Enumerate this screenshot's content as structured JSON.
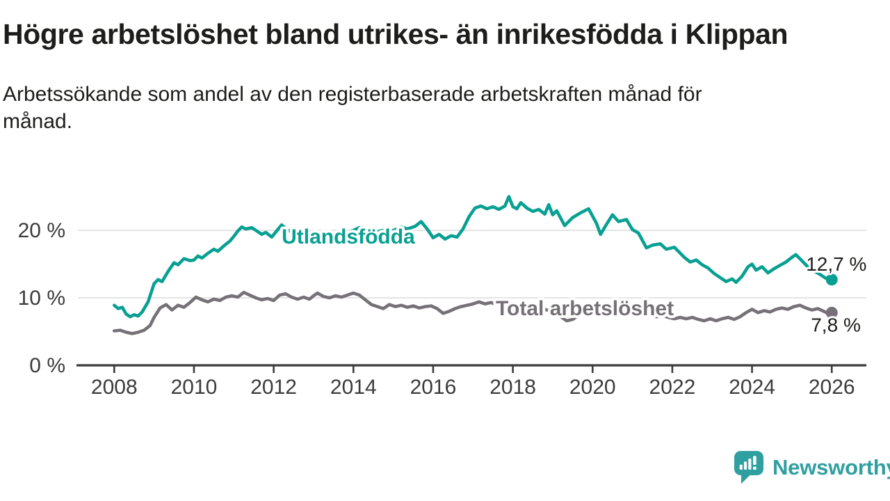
{
  "header": {
    "title": "Högre arbetslöshet bland utrikes- än inrikesfödda i Klippan",
    "subtitle": "Arbetssökande som andel av den registerbaserade arbetskraften månad för\nmånad."
  },
  "branding": {
    "name": "Newsworthy",
    "color": "#2f9fa0",
    "icon": "newsworthy-speech-bubble-chart-icon"
  },
  "chart_data": {
    "type": "line",
    "title": "",
    "xlabel": "",
    "ylabel": "",
    "unit": "%",
    "grid": true,
    "legend": "inline-labels",
    "axis_color": "#3b3b3b",
    "grid_color": "#dcdcdc",
    "value_label_color": "#1d1d1b",
    "x_axis": {
      "ticks": [
        2008,
        2010,
        2012,
        2014,
        2016,
        2018,
        2020,
        2022,
        2024,
        2026
      ],
      "range": [
        2007.1,
        2026.9
      ]
    },
    "y_axis": {
      "ticks": [
        0,
        10,
        20
      ],
      "labels": [
        "0 %",
        "10 %",
        "20 %"
      ],
      "range": [
        0,
        26
      ]
    },
    "series": [
      {
        "name": "Utlandsfödda",
        "color": "#08a092",
        "inline_label": {
          "text": "Utlandsfödda",
          "x": 2012.2,
          "y": 18.05
        },
        "end_label": "12,7 %",
        "end_value": 12.7,
        "points": [
          [
            2008.0,
            8.9
          ],
          [
            2008.1,
            8.4
          ],
          [
            2008.2,
            8.6
          ],
          [
            2008.3,
            7.6
          ],
          [
            2008.4,
            7.2
          ],
          [
            2008.5,
            7.5
          ],
          [
            2008.6,
            7.3
          ],
          [
            2008.7,
            7.9
          ],
          [
            2008.85,
            9.4
          ],
          [
            2009.0,
            12.1
          ],
          [
            2009.1,
            12.7
          ],
          [
            2009.2,
            12.4
          ],
          [
            2009.35,
            13.9
          ],
          [
            2009.5,
            15.2
          ],
          [
            2009.6,
            14.9
          ],
          [
            2009.75,
            15.8
          ],
          [
            2009.9,
            15.5
          ],
          [
            2010.0,
            15.6
          ],
          [
            2010.1,
            16.2
          ],
          [
            2010.2,
            15.9
          ],
          [
            2010.35,
            16.6
          ],
          [
            2010.5,
            17.2
          ],
          [
            2010.6,
            16.9
          ],
          [
            2010.75,
            17.7
          ],
          [
            2010.9,
            18.4
          ],
          [
            2011.0,
            19.1
          ],
          [
            2011.1,
            19.9
          ],
          [
            2011.2,
            20.5
          ],
          [
            2011.3,
            20.2
          ],
          [
            2011.45,
            20.4
          ],
          [
            2011.6,
            19.8
          ],
          [
            2011.7,
            19.4
          ],
          [
            2011.8,
            19.7
          ],
          [
            2011.95,
            19.0
          ],
          [
            2012.1,
            20.1
          ],
          [
            2012.2,
            20.8
          ],
          [
            2012.3,
            20.3
          ],
          [
            2012.4,
            19.9
          ],
          [
            2012.5,
            20.1
          ],
          [
            2012.6,
            19.6
          ],
          [
            2012.75,
            19.3
          ],
          [
            2012.9,
            19.6
          ],
          [
            2013.0,
            19.8
          ],
          [
            2013.15,
            19.5
          ],
          [
            2013.3,
            19.8
          ],
          [
            2013.45,
            19.4
          ],
          [
            2013.6,
            19.1
          ],
          [
            2013.75,
            19.5
          ],
          [
            2013.9,
            19.8
          ],
          [
            2014.0,
            20.0
          ],
          [
            2014.15,
            20.4
          ],
          [
            2014.3,
            20.1
          ],
          [
            2014.45,
            20.3
          ],
          [
            2014.6,
            19.8
          ],
          [
            2014.75,
            20.0
          ],
          [
            2014.9,
            19.7
          ],
          [
            2015.05,
            20.1
          ],
          [
            2015.2,
            20.5
          ],
          [
            2015.35,
            20.2
          ],
          [
            2015.55,
            20.6
          ],
          [
            2015.7,
            21.3
          ],
          [
            2015.85,
            20.2
          ],
          [
            2016.0,
            18.9
          ],
          [
            2016.15,
            19.4
          ],
          [
            2016.3,
            18.7
          ],
          [
            2016.45,
            19.2
          ],
          [
            2016.6,
            19.0
          ],
          [
            2016.75,
            20.2
          ],
          [
            2016.9,
            22.0
          ],
          [
            2017.05,
            23.3
          ],
          [
            2017.2,
            23.6
          ],
          [
            2017.35,
            23.2
          ],
          [
            2017.5,
            23.5
          ],
          [
            2017.65,
            23.1
          ],
          [
            2017.8,
            23.6
          ],
          [
            2017.9,
            25.0
          ],
          [
            2018.0,
            23.5
          ],
          [
            2018.1,
            23.2
          ],
          [
            2018.2,
            24.1
          ],
          [
            2018.35,
            23.3
          ],
          [
            2018.5,
            22.8
          ],
          [
            2018.65,
            23.1
          ],
          [
            2018.8,
            22.4
          ],
          [
            2018.9,
            23.8
          ],
          [
            2019.0,
            22.3
          ],
          [
            2019.1,
            22.9
          ],
          [
            2019.3,
            20.7
          ],
          [
            2019.5,
            21.9
          ],
          [
            2019.7,
            22.6
          ],
          [
            2019.9,
            23.2
          ],
          [
            2020.1,
            21.0
          ],
          [
            2020.2,
            19.4
          ],
          [
            2020.35,
            20.9
          ],
          [
            2020.5,
            22.3
          ],
          [
            2020.65,
            21.3
          ],
          [
            2020.85,
            21.6
          ],
          [
            2021.0,
            20.1
          ],
          [
            2021.15,
            19.6
          ],
          [
            2021.35,
            17.4
          ],
          [
            2021.5,
            17.8
          ],
          [
            2021.7,
            18.0
          ],
          [
            2021.85,
            17.2
          ],
          [
            2022.05,
            17.5
          ],
          [
            2022.3,
            16.0
          ],
          [
            2022.45,
            15.3
          ],
          [
            2022.6,
            15.6
          ],
          [
            2022.75,
            14.9
          ],
          [
            2022.9,
            14.4
          ],
          [
            2023.05,
            13.6
          ],
          [
            2023.2,
            13.0
          ],
          [
            2023.35,
            12.4
          ],
          [
            2023.5,
            12.8
          ],
          [
            2023.6,
            12.3
          ],
          [
            2023.75,
            13.2
          ],
          [
            2023.9,
            14.6
          ],
          [
            2024.0,
            15.0
          ],
          [
            2024.1,
            14.1
          ],
          [
            2024.25,
            14.6
          ],
          [
            2024.4,
            13.7
          ],
          [
            2024.55,
            14.3
          ],
          [
            2024.7,
            14.8
          ],
          [
            2024.85,
            15.3
          ],
          [
            2025.0,
            16.0
          ],
          [
            2025.1,
            16.4
          ],
          [
            2025.25,
            15.5
          ],
          [
            2025.4,
            14.6
          ],
          [
            2025.55,
            14.0
          ],
          [
            2025.7,
            13.5
          ],
          [
            2025.85,
            12.9
          ],
          [
            2026.0,
            12.7
          ]
        ]
      },
      {
        "name": "Total arbetslöshet",
        "color": "#757177",
        "inline_label": {
          "text": "Total arbetslöshet",
          "x": 2017.57,
          "y": 7.42
        },
        "end_label": "7,8 %",
        "end_value": 7.8,
        "points": [
          [
            2008.0,
            5.1
          ],
          [
            2008.15,
            5.2
          ],
          [
            2008.3,
            4.9
          ],
          [
            2008.45,
            4.7
          ],
          [
            2008.6,
            4.9
          ],
          [
            2008.75,
            5.2
          ],
          [
            2008.9,
            5.9
          ],
          [
            2009.0,
            7.1
          ],
          [
            2009.15,
            8.5
          ],
          [
            2009.3,
            9.0
          ],
          [
            2009.45,
            8.2
          ],
          [
            2009.6,
            8.9
          ],
          [
            2009.75,
            8.6
          ],
          [
            2009.9,
            9.3
          ],
          [
            2010.05,
            10.1
          ],
          [
            2010.2,
            9.7
          ],
          [
            2010.35,
            9.4
          ],
          [
            2010.5,
            9.8
          ],
          [
            2010.65,
            9.6
          ],
          [
            2010.8,
            10.1
          ],
          [
            2010.95,
            10.3
          ],
          [
            2011.1,
            10.1
          ],
          [
            2011.25,
            10.8
          ],
          [
            2011.4,
            10.4
          ],
          [
            2011.55,
            10.0
          ],
          [
            2011.7,
            9.7
          ],
          [
            2011.85,
            9.9
          ],
          [
            2012.0,
            9.6
          ],
          [
            2012.15,
            10.4
          ],
          [
            2012.3,
            10.6
          ],
          [
            2012.45,
            10.1
          ],
          [
            2012.6,
            9.8
          ],
          [
            2012.75,
            10.1
          ],
          [
            2012.9,
            9.8
          ],
          [
            2013.0,
            10.3
          ],
          [
            2013.1,
            10.7
          ],
          [
            2013.25,
            10.2
          ],
          [
            2013.4,
            10.0
          ],
          [
            2013.55,
            10.3
          ],
          [
            2013.7,
            10.1
          ],
          [
            2013.85,
            10.4
          ],
          [
            2014.0,
            10.7
          ],
          [
            2014.15,
            10.4
          ],
          [
            2014.3,
            9.7
          ],
          [
            2014.45,
            9.0
          ],
          [
            2014.6,
            8.7
          ],
          [
            2014.75,
            8.4
          ],
          [
            2014.9,
            9.0
          ],
          [
            2015.05,
            8.7
          ],
          [
            2015.2,
            8.9
          ],
          [
            2015.35,
            8.6
          ],
          [
            2015.5,
            8.8
          ],
          [
            2015.65,
            8.5
          ],
          [
            2015.8,
            8.7
          ],
          [
            2015.95,
            8.8
          ],
          [
            2016.1,
            8.4
          ],
          [
            2016.25,
            7.7
          ],
          [
            2016.4,
            8.0
          ],
          [
            2016.55,
            8.4
          ],
          [
            2016.7,
            8.7
          ],
          [
            2016.85,
            8.9
          ],
          [
            2017.0,
            9.1
          ],
          [
            2017.15,
            9.4
          ],
          [
            2017.3,
            9.1
          ],
          [
            2017.45,
            9.3
          ],
          [
            2017.6,
            9.0
          ],
          [
            2017.75,
            9.2
          ],
          [
            2017.9,
            8.9
          ],
          [
            2018.05,
            8.7
          ],
          [
            2018.2,
            8.9
          ],
          [
            2018.35,
            8.6
          ],
          [
            2018.5,
            8.4
          ],
          [
            2018.65,
            8.6
          ],
          [
            2018.8,
            8.3
          ],
          [
            2018.95,
            8.0
          ],
          [
            2019.1,
            7.6
          ],
          [
            2019.25,
            7.0
          ],
          [
            2019.35,
            6.6
          ],
          [
            2019.5,
            6.8
          ],
          [
            2019.65,
            7.4
          ],
          [
            2019.8,
            7.8
          ],
          [
            2019.95,
            8.1
          ],
          [
            2020.1,
            8.0
          ],
          [
            2020.25,
            8.3
          ],
          [
            2020.4,
            8.1
          ],
          [
            2020.55,
            8.3
          ],
          [
            2020.7,
            8.0
          ],
          [
            2020.85,
            8.2
          ],
          [
            2021.0,
            7.9
          ],
          [
            2021.15,
            7.6
          ],
          [
            2021.3,
            7.3
          ],
          [
            2021.45,
            7.5
          ],
          [
            2021.6,
            7.2
          ],
          [
            2021.75,
            7.4
          ],
          [
            2021.9,
            7.1
          ],
          [
            2022.05,
            6.9
          ],
          [
            2022.2,
            7.1
          ],
          [
            2022.35,
            6.9
          ],
          [
            2022.5,
            7.1
          ],
          [
            2022.65,
            6.8
          ],
          [
            2022.8,
            6.6
          ],
          [
            2022.95,
            6.9
          ],
          [
            2023.1,
            6.6
          ],
          [
            2023.25,
            6.9
          ],
          [
            2023.4,
            7.1
          ],
          [
            2023.55,
            6.8
          ],
          [
            2023.7,
            7.2
          ],
          [
            2023.85,
            7.8
          ],
          [
            2024.0,
            8.3
          ],
          [
            2024.15,
            7.8
          ],
          [
            2024.3,
            8.1
          ],
          [
            2024.45,
            7.9
          ],
          [
            2024.6,
            8.3
          ],
          [
            2024.75,
            8.5
          ],
          [
            2024.9,
            8.3
          ],
          [
            2025.05,
            8.7
          ],
          [
            2025.2,
            8.9
          ],
          [
            2025.35,
            8.5
          ],
          [
            2025.5,
            8.2
          ],
          [
            2025.65,
            8.4
          ],
          [
            2025.8,
            8.0
          ],
          [
            2025.9,
            7.7
          ],
          [
            2026.0,
            7.8
          ]
        ]
      }
    ]
  }
}
